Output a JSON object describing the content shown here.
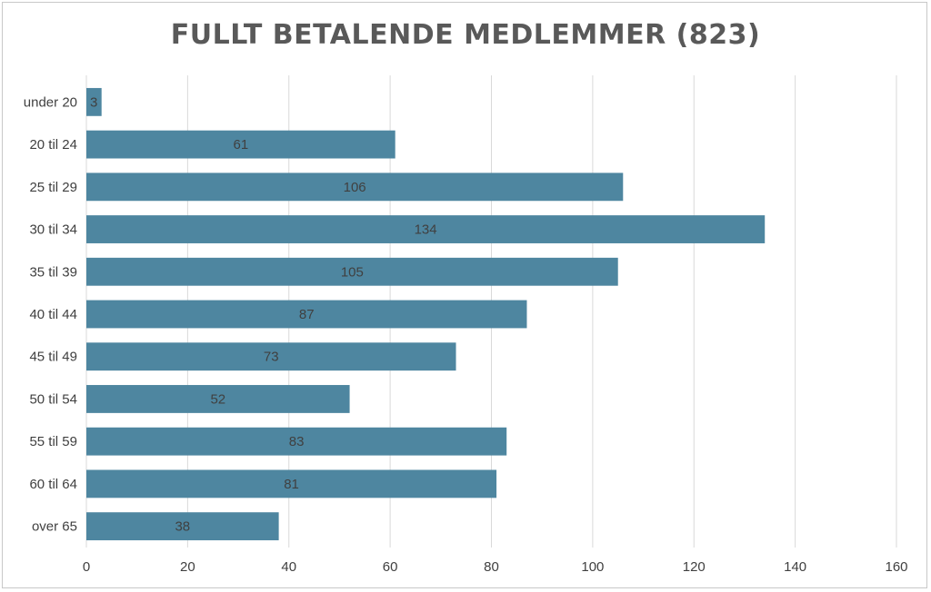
{
  "chart_data": {
    "type": "bar",
    "orientation": "horizontal",
    "title": "FULLT BETALENDE MEDLEMMER (823)",
    "categories": [
      "under 20",
      "20 til 24",
      "25 til 29",
      "30 til 34",
      "35 til 39",
      "40 til 44",
      "45 til 49",
      "50 til 54",
      "55 til 59",
      "60 til 64",
      "over 65"
    ],
    "values": [
      3,
      61,
      106,
      134,
      105,
      87,
      73,
      52,
      83,
      81,
      38
    ],
    "xlabel": "",
    "ylabel": "",
    "xlim": [
      0,
      160
    ],
    "x_ticks": [
      0,
      20,
      40,
      60,
      80,
      100,
      120,
      140,
      160
    ],
    "grid": "vertical",
    "legend": "none",
    "bar_color": "#4e86a0",
    "data_labels": true
  }
}
